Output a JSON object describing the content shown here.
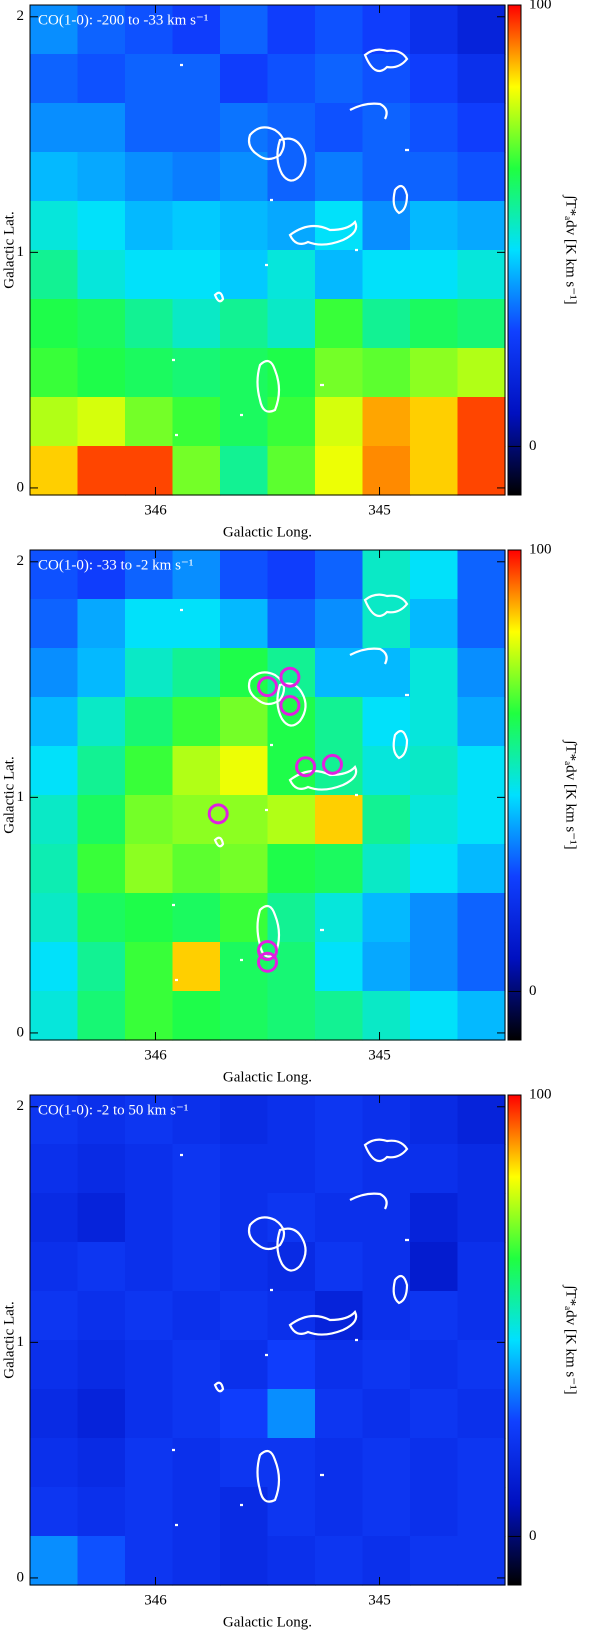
{
  "chart_data": [
    {
      "type": "heatmap",
      "title": "CO(1-0): -200 to -33 km s⁻¹",
      "xlabel": "Galactic Long.",
      "ylabel": "Galactic Lat.",
      "colorbar_label": "∫T*ₐdv [K km s⁻¹]",
      "xlim": [
        346.56,
        344.44
      ],
      "ylim": [
        -0.03,
        2.05
      ],
      "xticks": [
        346,
        345
      ],
      "yticks": [
        0,
        1,
        2
      ],
      "clim": [
        -11,
        100
      ],
      "cticks": [
        0,
        100
      ],
      "colormap": [
        "#000000",
        "#0010c0",
        "#1040ff",
        "#00e0ff",
        "#20ff40",
        "#ffff00",
        "#ff0000"
      ],
      "z": [
        [
          35,
          30,
          28,
          25,
          30,
          25,
          28,
          25,
          20,
          15
        ],
        [
          30,
          28,
          30,
          30,
          25,
          28,
          30,
          28,
          25,
          20
        ],
        [
          35,
          35,
          30,
          30,
          32,
          30,
          28,
          30,
          28,
          25
        ],
        [
          40,
          38,
          35,
          33,
          35,
          30,
          33,
          30,
          30,
          28
        ],
        [
          48,
          45,
          40,
          42,
          40,
          38,
          45,
          35,
          40,
          38
        ],
        [
          55,
          48,
          45,
          45,
          42,
          48,
          40,
          45,
          45,
          48
        ],
        [
          62,
          60,
          55,
          50,
          55,
          50,
          65,
          55,
          60,
          58
        ],
        [
          65,
          62,
          60,
          58,
          60,
          62,
          70,
          68,
          72,
          75
        ],
        [
          75,
          78,
          70,
          65,
          60,
          65,
          78,
          88,
          85,
          95
        ],
        [
          85,
          95,
          95,
          70,
          55,
          68,
          80,
          90,
          85,
          95
        ]
      ]
    },
    {
      "type": "heatmap",
      "title": "CO(1-0): -33 to -2 km s⁻¹",
      "xlabel": "Galactic Long.",
      "ylabel": "Galactic Lat.",
      "colorbar_label": "∫T*ₐdv [K km s⁻¹]",
      "xlim": [
        346.56,
        344.44
      ],
      "ylim": [
        -0.03,
        2.05
      ],
      "xticks": [
        346,
        345
      ],
      "yticks": [
        0,
        1,
        2
      ],
      "clim": [
        -11,
        100
      ],
      "cticks": [
        0,
        100
      ],
      "colormap": [
        "#000000",
        "#0010c0",
        "#1040ff",
        "#00e0ff",
        "#20ff40",
        "#ffff00",
        "#ff0000"
      ],
      "z": [
        [
          28,
          25,
          30,
          35,
          28,
          25,
          30,
          50,
          45,
          30
        ],
        [
          30,
          38,
          45,
          45,
          40,
          30,
          35,
          50,
          40,
          30
        ],
        [
          35,
          40,
          50,
          55,
          62,
          55,
          40,
          40,
          48,
          35
        ],
        [
          40,
          50,
          58,
          65,
          70,
          62,
          55,
          45,
          48,
          38
        ],
        [
          45,
          55,
          65,
          75,
          80,
          62,
          55,
          48,
          50,
          45
        ],
        [
          50,
          60,
          70,
          72,
          72,
          75,
          85,
          55,
          48,
          45
        ],
        [
          52,
          65,
          72,
          68,
          70,
          62,
          60,
          50,
          45,
          40
        ],
        [
          50,
          60,
          62,
          60,
          65,
          55,
          48,
          40,
          35,
          30
        ],
        [
          45,
          55,
          65,
          85,
          60,
          58,
          45,
          38,
          35,
          30
        ],
        [
          48,
          58,
          65,
          62,
          60,
          58,
          55,
          50,
          45,
          40
        ]
      ],
      "markers": {
        "color": "#e020e0",
        "x": [
          345.5,
          345.4,
          345.4,
          345.33,
          345.21,
          345.72,
          345.5,
          345.5
        ],
        "y": [
          1.47,
          1.51,
          1.39,
          1.13,
          1.14,
          0.93,
          0.35,
          0.3
        ]
      }
    },
    {
      "type": "heatmap",
      "title": "CO(1-0): -2 to 50 km s⁻¹",
      "xlabel": "Galactic Long.",
      "ylabel": "Galactic Lat.",
      "colorbar_label": "∫T*ₐdv [K km s⁻¹]",
      "xlim": [
        346.56,
        344.44
      ],
      "ylim": [
        -0.03,
        2.05
      ],
      "xticks": [
        346,
        345
      ],
      "yticks": [
        0,
        1,
        2
      ],
      "clim": [
        -11,
        100
      ],
      "cticks": [
        0,
        100
      ],
      "colormap": [
        "#000000",
        "#0010c0",
        "#1040ff",
        "#00e0ff",
        "#20ff40",
        "#ffff00",
        "#ff0000"
      ],
      "z": [
        [
          22,
          20,
          22,
          20,
          18,
          20,
          22,
          20,
          18,
          15
        ],
        [
          20,
          18,
          20,
          22,
          20,
          20,
          22,
          20,
          20,
          18
        ],
        [
          18,
          15,
          20,
          22,
          20,
          22,
          20,
          20,
          15,
          18
        ],
        [
          20,
          22,
          20,
          22,
          20,
          18,
          22,
          20,
          12,
          20
        ],
        [
          22,
          20,
          22,
          20,
          22,
          20,
          15,
          20,
          22,
          20
        ],
        [
          20,
          18,
          20,
          22,
          20,
          25,
          20,
          22,
          20,
          22
        ],
        [
          18,
          15,
          20,
          22,
          25,
          35,
          22,
          20,
          22,
          20
        ],
        [
          20,
          18,
          22,
          20,
          22,
          22,
          20,
          22,
          20,
          22
        ],
        [
          22,
          20,
          22,
          20,
          18,
          22,
          20,
          22,
          20,
          22
        ],
        [
          35,
          28,
          22,
          20,
          18,
          20,
          22,
          20,
          22,
          22
        ]
      ]
    }
  ]
}
